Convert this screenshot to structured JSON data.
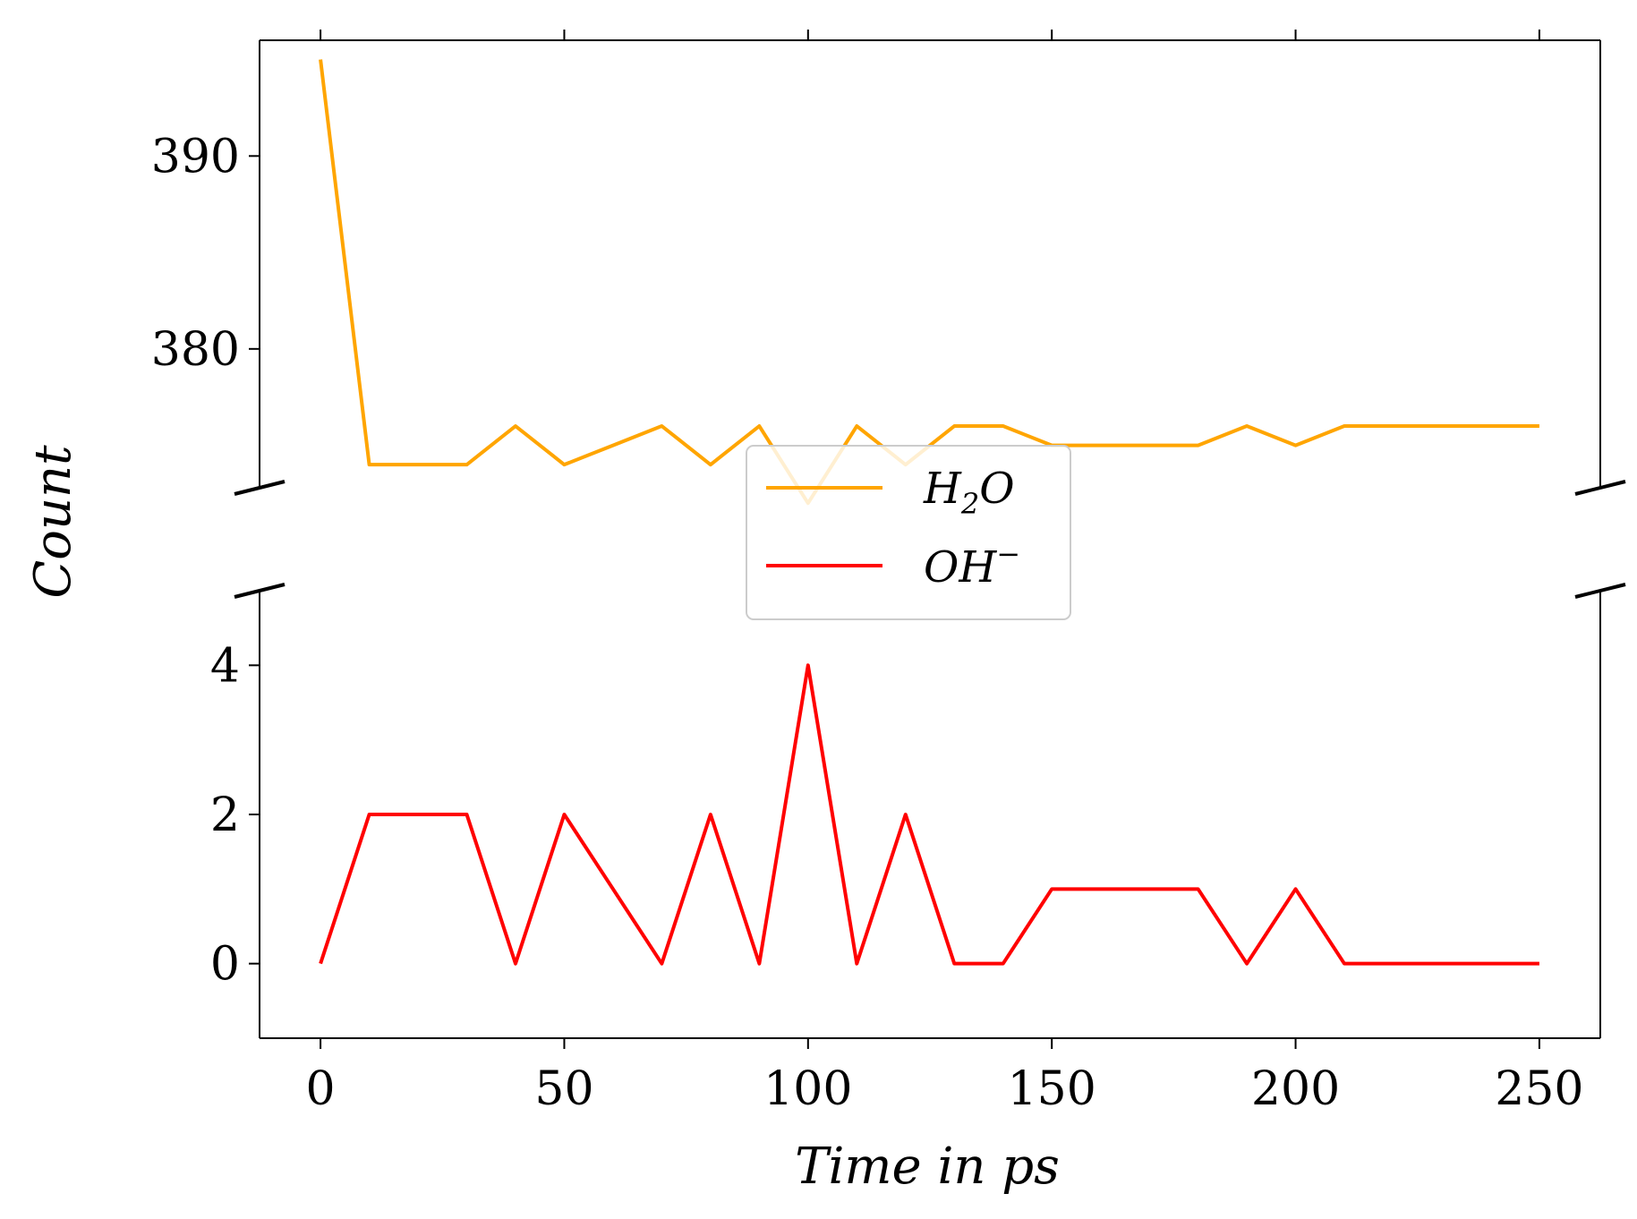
{
  "chart_data": {
    "type": "line",
    "broken_y_axis": true,
    "xlabel": "Time in ps",
    "ylabel": "Count",
    "xlim": [
      -12.5,
      262.5
    ],
    "xticks": [
      0,
      50,
      100,
      150,
      200,
      250
    ],
    "xtick_labels": [
      "0",
      "50",
      "100",
      "150",
      "200",
      "250"
    ],
    "panels": [
      {
        "name": "upper",
        "ylim": [
          372.8,
          396
        ],
        "yticks": [
          380,
          390
        ],
        "ytick_labels": [
          "380",
          "390"
        ]
      },
      {
        "name": "lower",
        "ylim": [
          -1,
          5
        ],
        "yticks": [
          0,
          2,
          4
        ],
        "ytick_labels": [
          "0",
          "2",
          "4"
        ]
      }
    ],
    "x": [
      0,
      10,
      20,
      30,
      40,
      50,
      60,
      70,
      80,
      90,
      100,
      110,
      120,
      130,
      140,
      150,
      160,
      170,
      180,
      190,
      200,
      210,
      220,
      230,
      240,
      250
    ],
    "series": [
      {
        "name": "H",
        "name_sub": "2",
        "name_rest": "O",
        "panel": "upper",
        "color": "#ffa500",
        "values": [
          395,
          374,
          374,
          374,
          376,
          374,
          375,
          376,
          374,
          376,
          372,
          376,
          374,
          376,
          376,
          375,
          375,
          375,
          375,
          376,
          375,
          376,
          376,
          376,
          376,
          376
        ]
      },
      {
        "name": "OH",
        "name_sup": "−",
        "panel": "lower",
        "color": "#ff0000",
        "values": [
          0,
          2,
          2,
          2,
          0,
          2,
          1,
          0,
          2,
          0,
          4,
          0,
          2,
          0,
          0,
          1,
          1,
          1,
          1,
          0,
          1,
          0,
          0,
          0,
          0,
          0
        ]
      }
    ],
    "legend_position": "center"
  }
}
